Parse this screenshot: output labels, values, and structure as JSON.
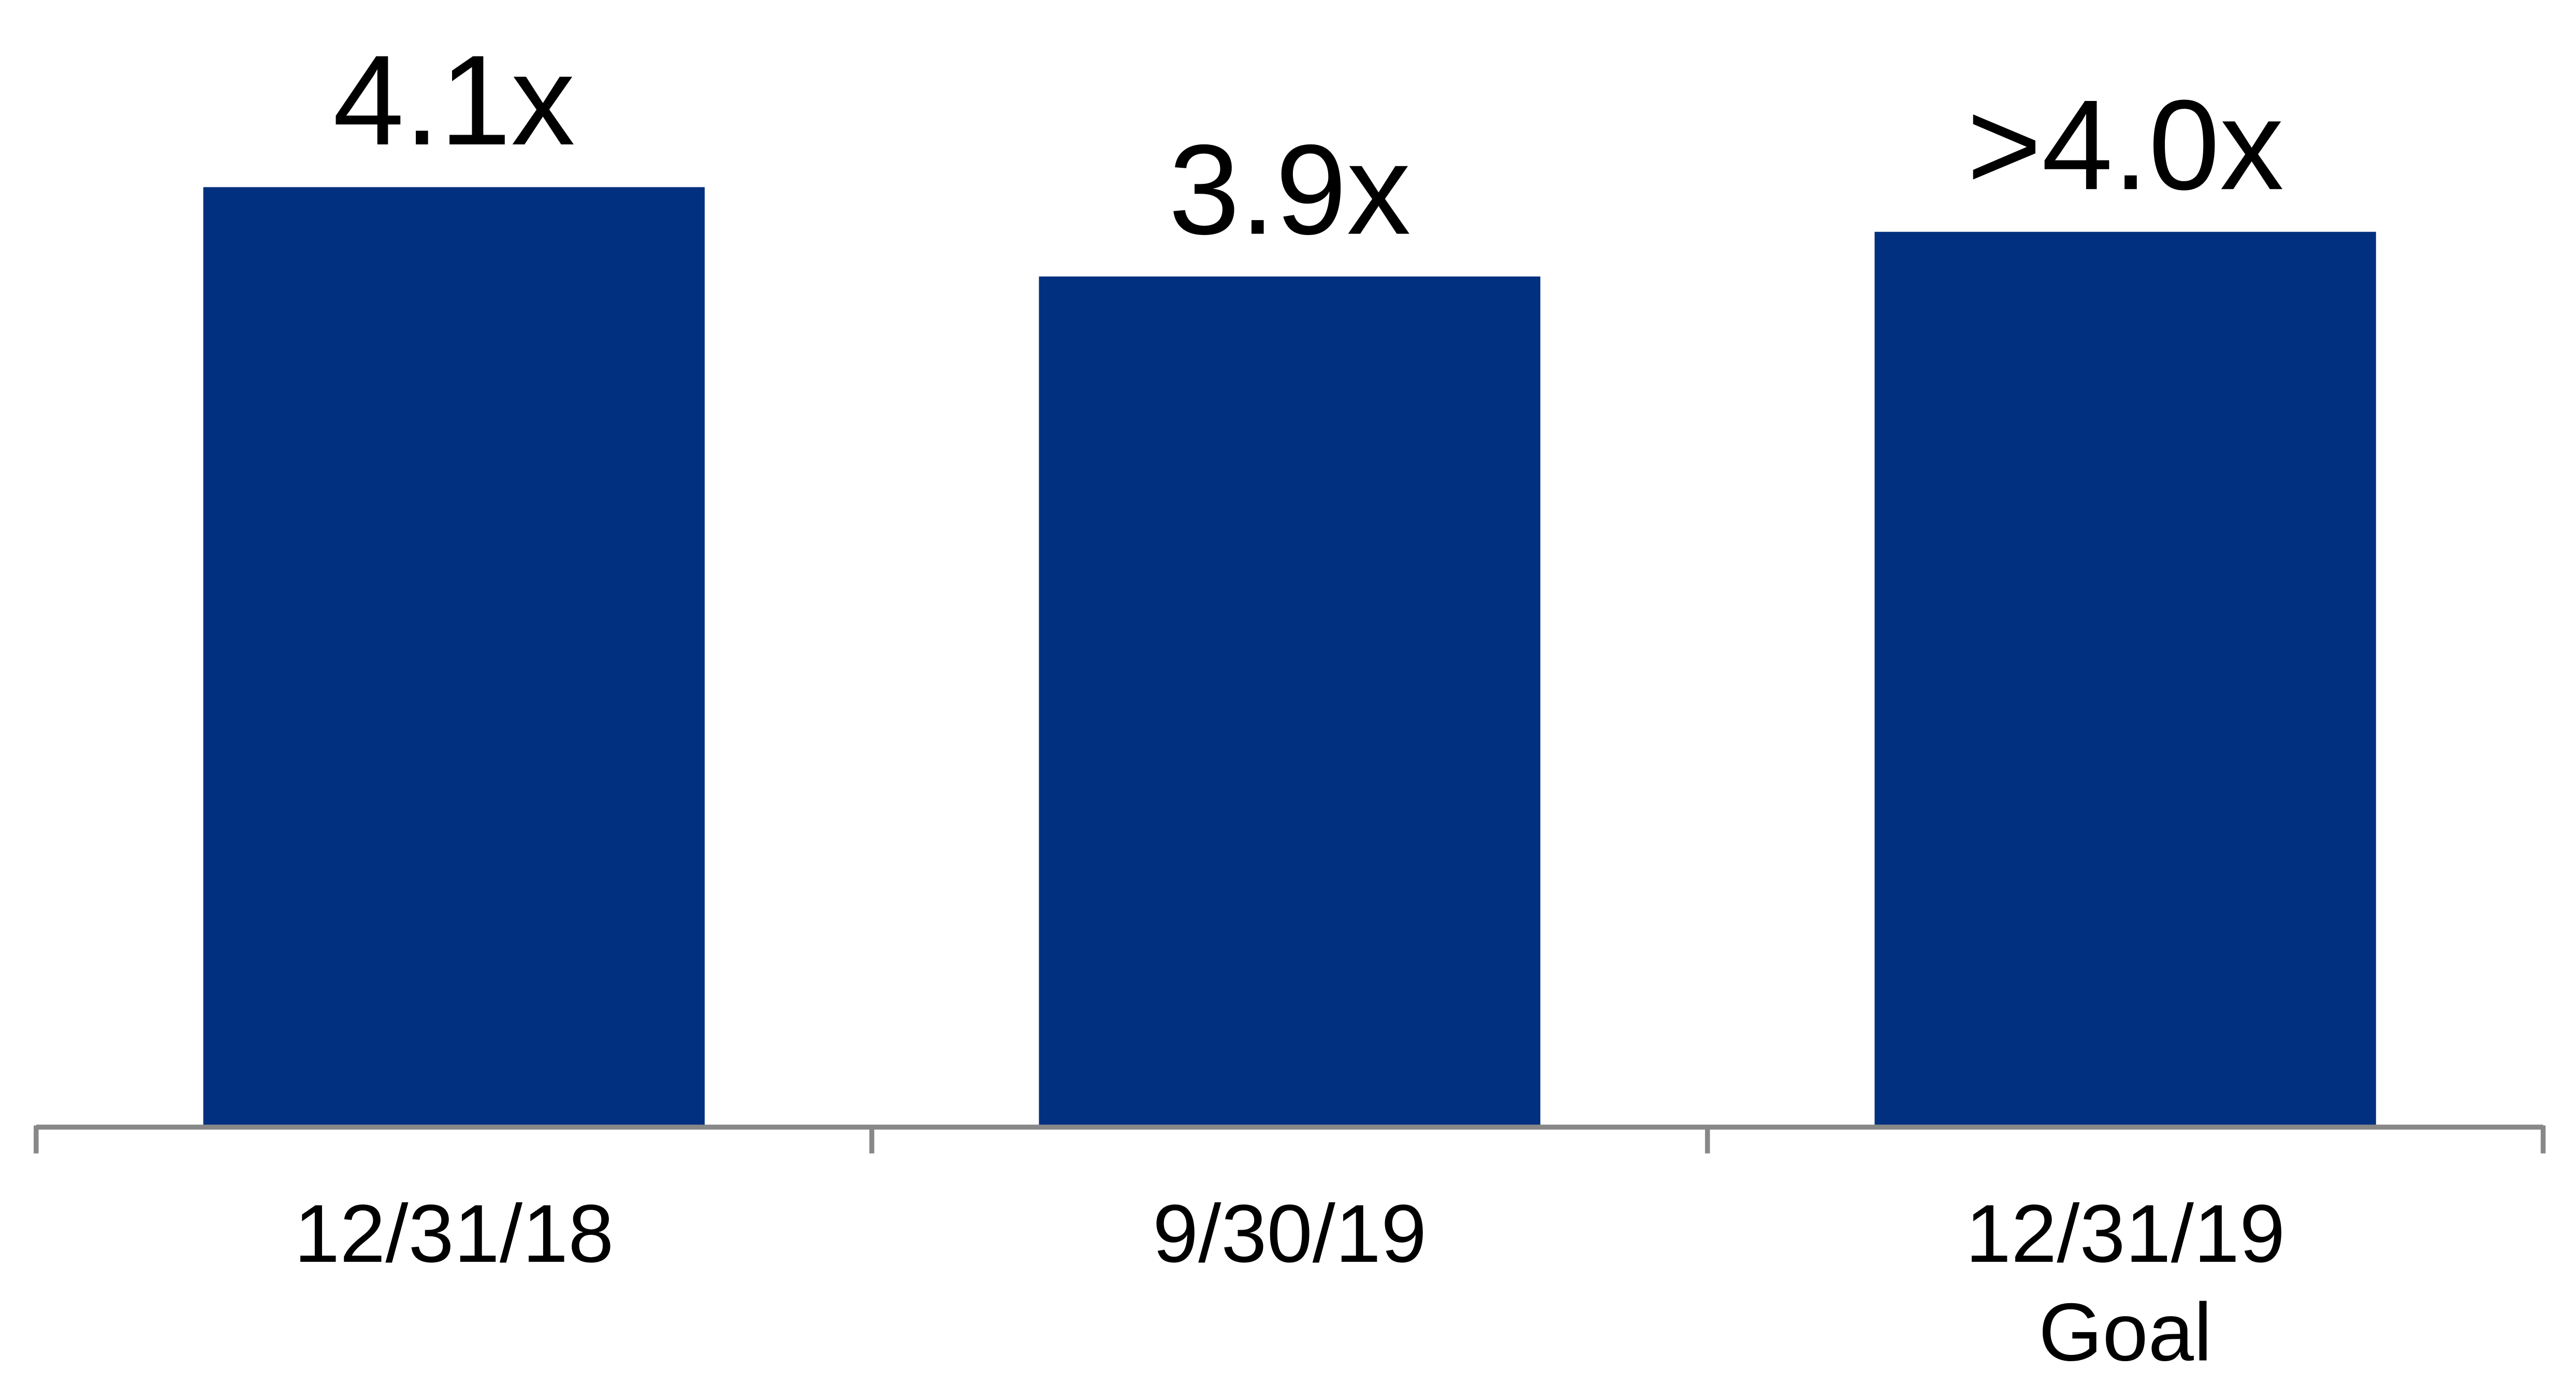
{
  "chart_data": {
    "type": "bar",
    "categories": [
      "12/31/18",
      "9/30/19",
      "12/31/19\nGoal"
    ],
    "values": [
      4.1,
      3.9,
      4.0
    ],
    "value_labels": [
      "4.1x",
      "3.9x",
      ">4.0x"
    ],
    "color": "#00307f",
    "ylim": [
      2,
      4.5
    ]
  }
}
